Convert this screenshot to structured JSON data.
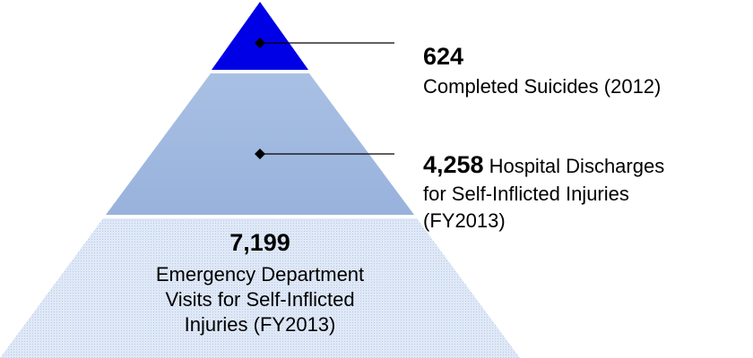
{
  "tiers": [
    {
      "value": "624",
      "label": [
        "Completed Suicides (2012)"
      ]
    },
    {
      "value": "4,258",
      "label": [
        "Hospital Discharges",
        "for Self-Inflicted Injuries",
        "(FY2013)"
      ]
    },
    {
      "value": "7,199",
      "label": [
        "Emergency Department",
        "Visits for Self-Inflicted",
        "Injuries (FY2013)"
      ]
    }
  ]
}
